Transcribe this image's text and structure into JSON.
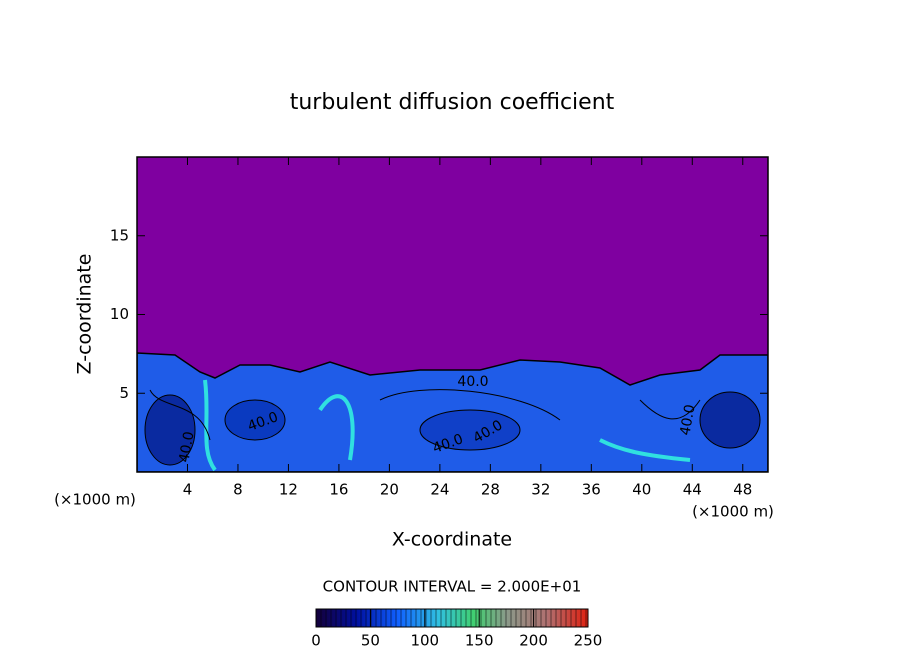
{
  "chart_data": {
    "type": "contour",
    "title": "turbulent diffusion coefficient",
    "xlabel": "X-coordinate",
    "ylabel": "Z-coordinate",
    "x_unit": "(×1000 m)",
    "xlim": [
      0,
      50
    ],
    "xticks": [
      4,
      8,
      12,
      16,
      20,
      24,
      28,
      32,
      36,
      40,
      44,
      48
    ],
    "ylim": [
      0,
      20
    ],
    "yticks": [
      5,
      10,
      15
    ],
    "contour_labels": [
      "40.0",
      "40.0",
      "40.0",
      "40.0",
      "40.0",
      "40.0"
    ],
    "contour_interval": "CONTOUR INTERVAL = 2.000E+01",
    "colorbar": {
      "clim": [
        0,
        250
      ],
      "ticks": [
        0,
        50,
        100,
        150,
        200,
        250
      ]
    }
  }
}
